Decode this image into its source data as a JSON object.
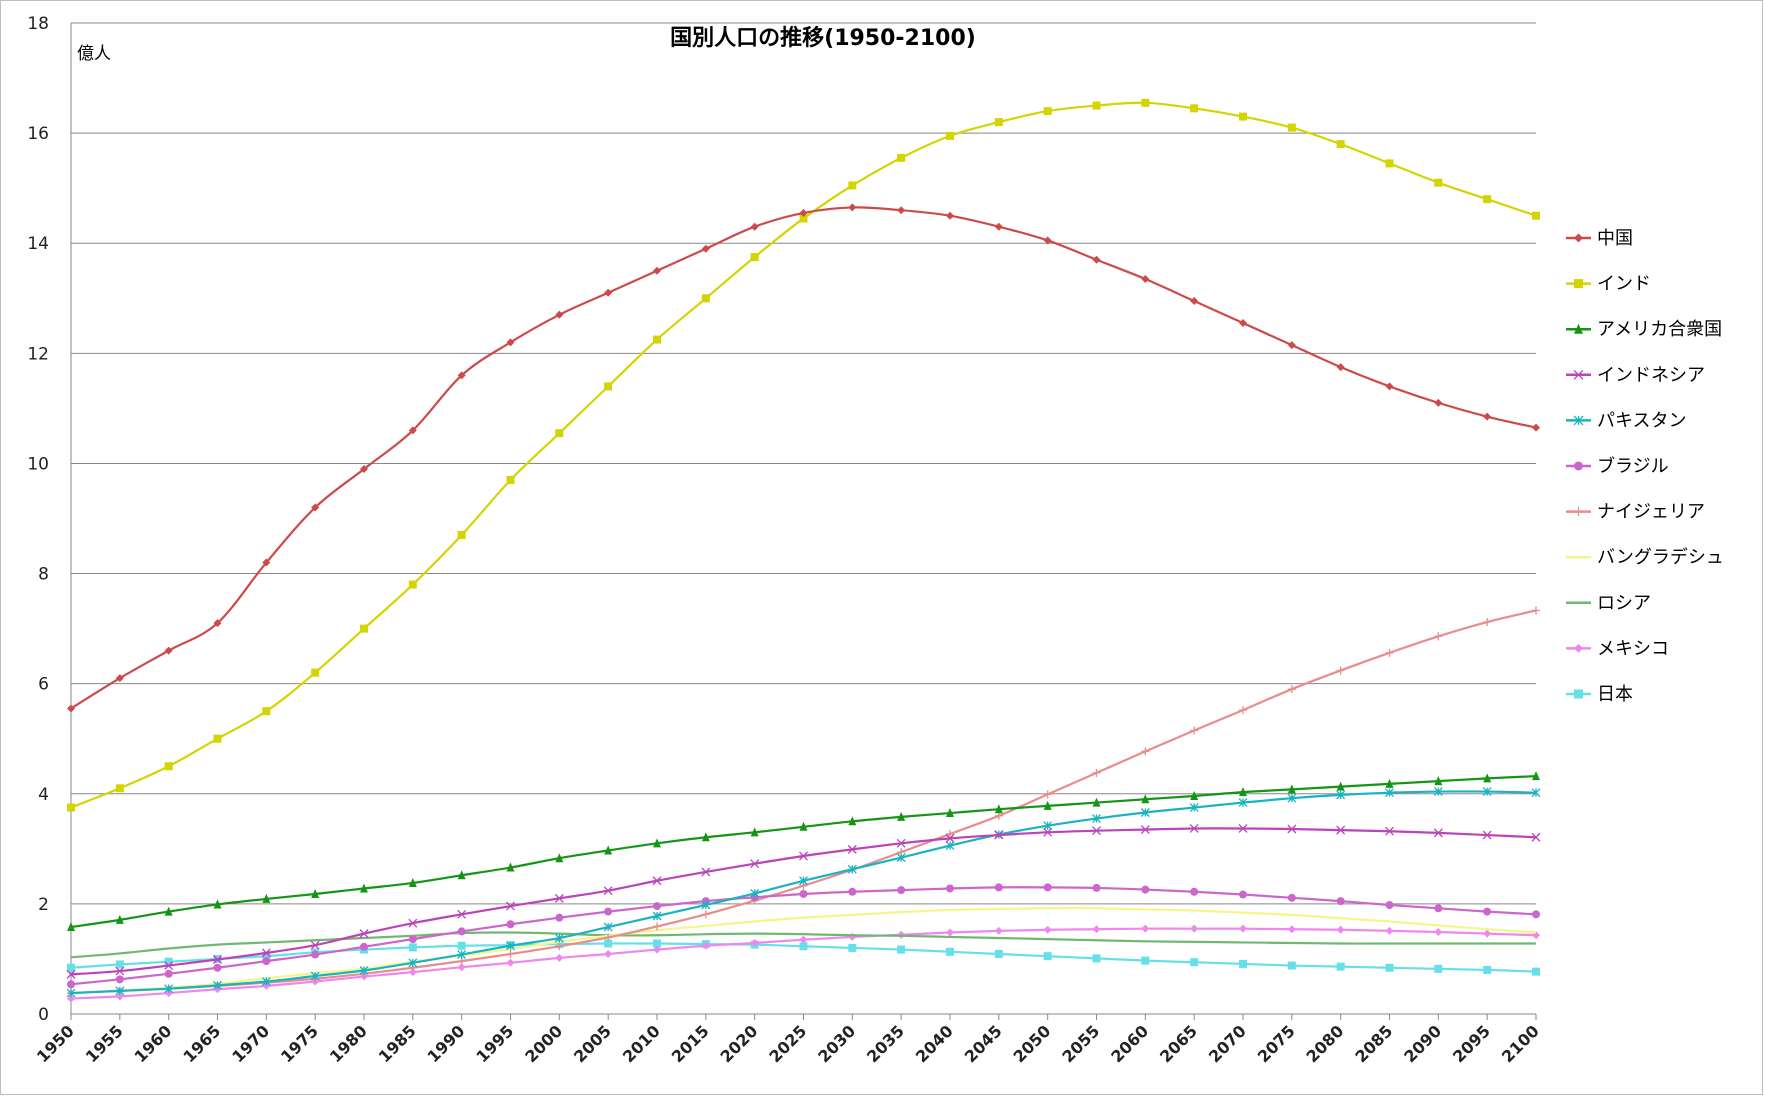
{
  "chart_data": {
    "type": "line",
    "title": "国別人口の推移(1950-2100)",
    "unit_label": "億人",
    "xlabel": "",
    "ylabel": "",
    "x_range": [
      1950,
      2100
    ],
    "ylim": [
      0,
      18
    ],
    "y_ticks": [
      0,
      2,
      4,
      6,
      8,
      10,
      12,
      14,
      16,
      18
    ],
    "x_ticks": [
      1950,
      1955,
      1960,
      1965,
      1970,
      1975,
      1980,
      1985,
      1990,
      1995,
      2000,
      2005,
      2010,
      2015,
      2020,
      2025,
      2030,
      2035,
      2040,
      2045,
      2050,
      2055,
      2060,
      2065,
      2070,
      2075,
      2080,
      2085,
      2090,
      2095,
      2100
    ],
    "grid": "horizontal",
    "legend_position": "right",
    "x": [
      1950,
      1955,
      1960,
      1965,
      1970,
      1975,
      1980,
      1985,
      1990,
      1995,
      2000,
      2005,
      2010,
      2015,
      2020,
      2025,
      2030,
      2035,
      2040,
      2045,
      2050,
      2055,
      2060,
      2065,
      2070,
      2075,
      2080,
      2085,
      2090,
      2095,
      2100
    ],
    "series": [
      {
        "name": "中国",
        "color": "#cc4a4a",
        "marker": "diamond",
        "values": [
          5.55,
          6.1,
          6.6,
          7.1,
          8.2,
          9.2,
          9.9,
          10.6,
          11.6,
          12.2,
          12.7,
          13.1,
          13.5,
          13.9,
          14.3,
          14.55,
          14.65,
          14.6,
          14.5,
          14.3,
          14.05,
          13.7,
          13.35,
          12.95,
          12.55,
          12.15,
          11.75,
          11.4,
          11.1,
          10.85,
          10.65
        ]
      },
      {
        "name": "インド",
        "color": "#d4d400",
        "marker": "square",
        "values": [
          3.75,
          4.1,
          4.5,
          5.0,
          5.5,
          6.2,
          7.0,
          7.8,
          8.7,
          9.7,
          10.55,
          11.4,
          12.25,
          13.0,
          13.75,
          14.45,
          15.05,
          15.55,
          15.95,
          16.2,
          16.4,
          16.5,
          16.55,
          16.45,
          16.3,
          16.1,
          15.8,
          15.45,
          15.1,
          14.8,
          14.5
        ]
      },
      {
        "name": "アメリカ合衆国",
        "color": "#149614",
        "marker": "triangle",
        "values": [
          1.58,
          1.71,
          1.86,
          1.99,
          2.09,
          2.18,
          2.28,
          2.38,
          2.52,
          2.66,
          2.83,
          2.97,
          3.1,
          3.21,
          3.3,
          3.4,
          3.5,
          3.58,
          3.65,
          3.72,
          3.78,
          3.84,
          3.9,
          3.96,
          4.03,
          4.08,
          4.13,
          4.18,
          4.23,
          4.28,
          4.32
        ]
      },
      {
        "name": "インドネシア",
        "color": "#bb44bb",
        "marker": "x",
        "values": [
          0.72,
          0.78,
          0.88,
          0.99,
          1.11,
          1.25,
          1.46,
          1.65,
          1.81,
          1.96,
          2.1,
          2.24,
          2.42,
          2.58,
          2.73,
          2.87,
          2.99,
          3.1,
          3.19,
          3.25,
          3.3,
          3.33,
          3.35,
          3.37,
          3.37,
          3.36,
          3.34,
          3.32,
          3.29,
          3.25,
          3.21
        ]
      },
      {
        "name": "パキスタン",
        "color": "#1ab3c2",
        "marker": "star",
        "values": [
          0.38,
          0.42,
          0.46,
          0.52,
          0.59,
          0.69,
          0.79,
          0.93,
          1.08,
          1.24,
          1.38,
          1.58,
          1.78,
          1.98,
          2.19,
          2.42,
          2.63,
          2.84,
          3.06,
          3.26,
          3.42,
          3.55,
          3.66,
          3.75,
          3.84,
          3.92,
          3.98,
          4.02,
          4.04,
          4.04,
          4.02
        ]
      },
      {
        "name": "ブラジル",
        "color": "#cc66cc",
        "marker": "circle",
        "values": [
          0.54,
          0.63,
          0.73,
          0.84,
          0.96,
          1.08,
          1.22,
          1.36,
          1.5,
          1.63,
          1.75,
          1.86,
          1.96,
          2.05,
          2.12,
          2.18,
          2.22,
          2.25,
          2.28,
          2.3,
          2.3,
          2.29,
          2.26,
          2.22,
          2.17,
          2.11,
          2.05,
          1.98,
          1.92,
          1.86,
          1.81
        ]
      },
      {
        "name": "ナイジェリア",
        "color": "#e88c8c",
        "marker": "plus",
        "values": [
          0.38,
          0.42,
          0.46,
          0.51,
          0.57,
          0.64,
          0.73,
          0.84,
          0.96,
          1.09,
          1.23,
          1.39,
          1.59,
          1.81,
          2.06,
          2.33,
          2.62,
          2.94,
          3.27,
          3.6,
          3.99,
          4.38,
          4.77,
          5.15,
          5.52,
          5.9,
          6.24,
          6.56,
          6.86,
          7.12,
          7.33
        ]
      },
      {
        "name": "バングラデシュ",
        "color": "#f5f58a",
        "marker": "none",
        "values": [
          0.38,
          0.43,
          0.48,
          0.55,
          0.65,
          0.74,
          0.82,
          0.95,
          1.06,
          1.18,
          1.31,
          1.42,
          1.52,
          1.6,
          1.68,
          1.75,
          1.8,
          1.85,
          1.89,
          1.91,
          1.92,
          1.92,
          1.9,
          1.88,
          1.84,
          1.8,
          1.74,
          1.68,
          1.61,
          1.54,
          1.48
        ]
      },
      {
        "name": "ロシア",
        "color": "#70b870",
        "marker": "none",
        "values": [
          1.03,
          1.1,
          1.19,
          1.26,
          1.3,
          1.34,
          1.38,
          1.42,
          1.47,
          1.48,
          1.46,
          1.43,
          1.43,
          1.45,
          1.46,
          1.45,
          1.43,
          1.42,
          1.4,
          1.38,
          1.36,
          1.34,
          1.32,
          1.31,
          1.3,
          1.29,
          1.28,
          1.28,
          1.28,
          1.28,
          1.28
        ]
      },
      {
        "name": "メキシコ",
        "color": "#ee88ee",
        "marker": "diamond",
        "values": [
          0.28,
          0.32,
          0.38,
          0.45,
          0.51,
          0.59,
          0.68,
          0.76,
          0.85,
          0.93,
          1.02,
          1.09,
          1.17,
          1.24,
          1.29,
          1.35,
          1.4,
          1.44,
          1.48,
          1.51,
          1.53,
          1.54,
          1.55,
          1.55,
          1.55,
          1.54,
          1.53,
          1.51,
          1.49,
          1.46,
          1.43
        ]
      },
      {
        "name": "日本",
        "color": "#66e0e8",
        "marker": "square",
        "values": [
          0.84,
          0.9,
          0.95,
          1.0,
          1.05,
          1.12,
          1.17,
          1.21,
          1.24,
          1.25,
          1.27,
          1.28,
          1.28,
          1.27,
          1.26,
          1.23,
          1.2,
          1.17,
          1.13,
          1.09,
          1.05,
          1.01,
          0.97,
          0.94,
          0.91,
          0.88,
          0.86,
          0.84,
          0.82,
          0.8,
          0.77
        ]
      }
    ]
  }
}
